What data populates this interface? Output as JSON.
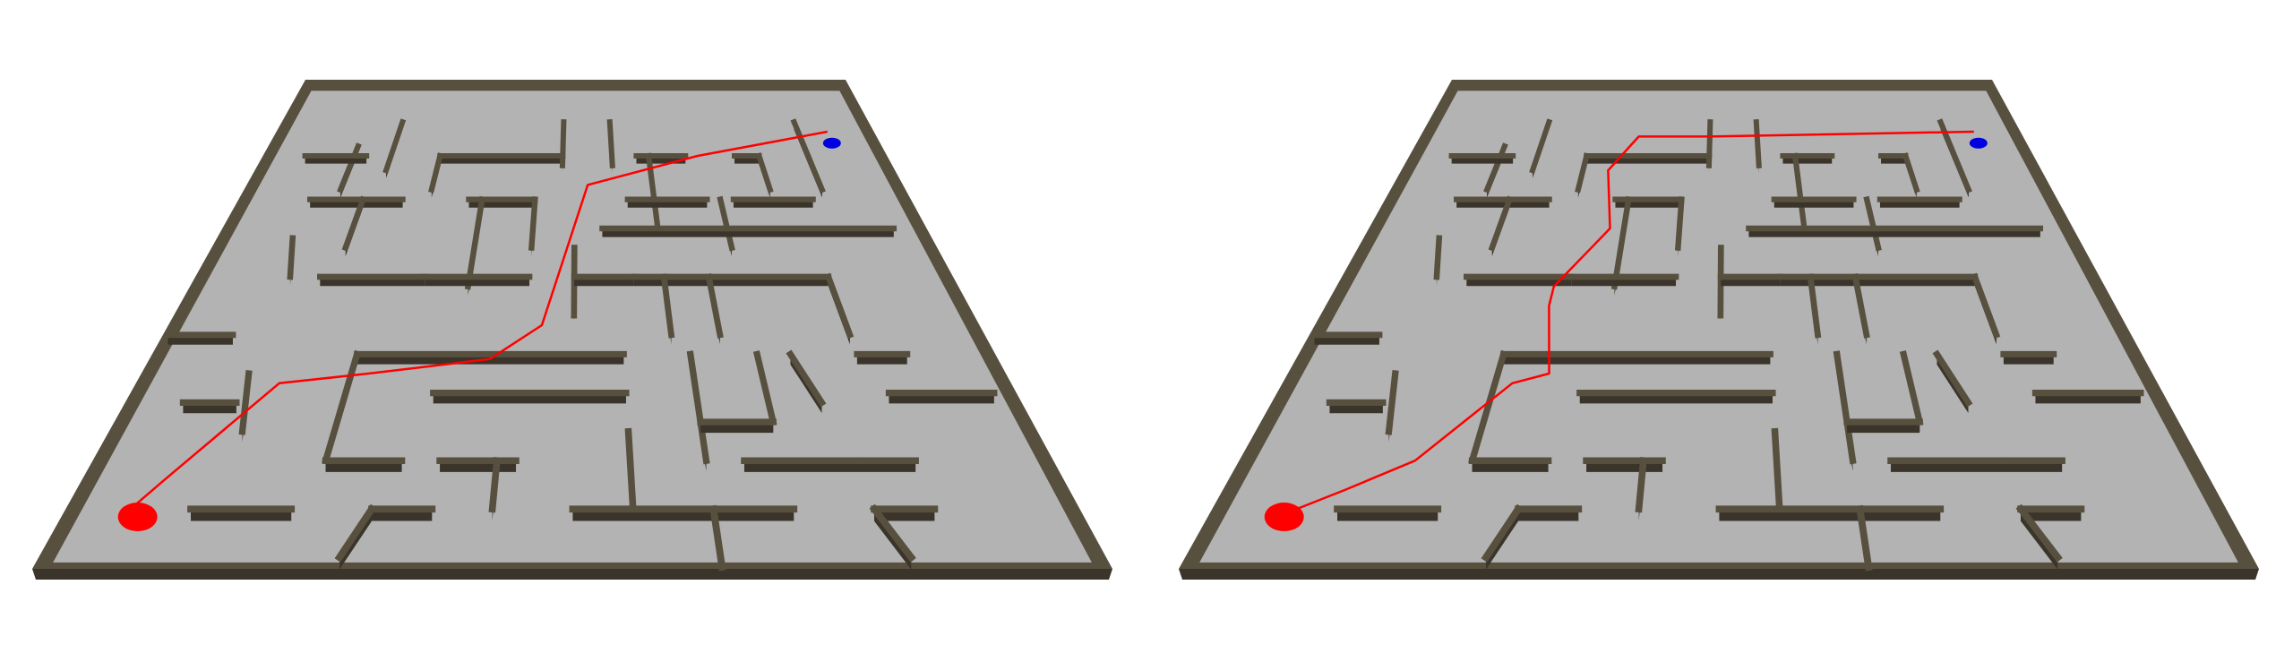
{
  "colors": {
    "background": "#ffffff",
    "floor": "#b3b3b3",
    "wall_top": "#58503f",
    "wall_side": "#3a342a",
    "path": "#ff0000",
    "start_marker": "#ff0000",
    "goal_marker": "#0000e0"
  },
  "panels": [
    {
      "label": "",
      "route": "straight-line",
      "start": [
        0.93,
        0.12
      ],
      "goal": [
        0.07,
        0.9
      ]
    },
    {
      "label": "",
      "route": "wall-following",
      "start": [
        0.93,
        0.12
      ],
      "goal": [
        0.07,
        0.9
      ]
    }
  ]
}
